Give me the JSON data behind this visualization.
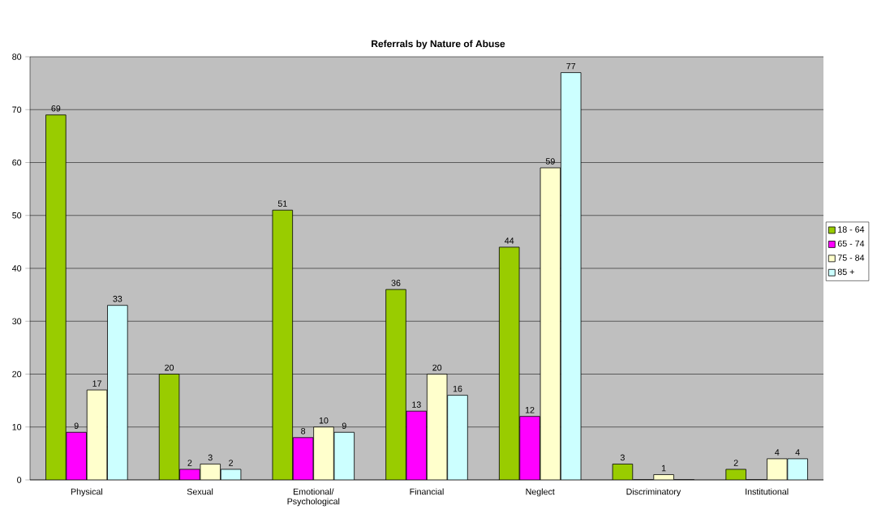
{
  "chart_data": {
    "type": "bar",
    "title": "Referrals by Nature of Abuse",
    "categories": [
      "Physical",
      "Sexual",
      "Emotional/ Psychological",
      "Financial",
      "Neglect",
      "Discriminatory",
      "Institutional"
    ],
    "series": [
      {
        "name": "18 - 64",
        "color": "#99cc00",
        "values": [
          69,
          20,
          51,
          36,
          44,
          3,
          2
        ],
        "value_labels": [
          "69",
          "20",
          "51",
          "36",
          "44",
          "3",
          "2"
        ]
      },
      {
        "name": "65 - 74",
        "color": "#ff00ff",
        "values": [
          9,
          2,
          8,
          13,
          12,
          0,
          0
        ],
        "value_labels": [
          "9",
          "2",
          "8",
          "13",
          "12",
          null,
          null
        ]
      },
      {
        "name": "75 - 84",
        "color": "#ffffcc",
        "values": [
          17,
          3,
          10,
          20,
          59,
          1,
          4
        ],
        "value_labels": [
          "17",
          "3",
          "10",
          "20",
          "59",
          "1",
          "4"
        ]
      },
      {
        "name": "85 +",
        "color": "#ccffff",
        "values": [
          33,
          2,
          9,
          16,
          77,
          0,
          4
        ],
        "value_labels": [
          "33",
          "2",
          "9",
          "16",
          "77",
          null,
          "4"
        ]
      }
    ],
    "ylim": [
      0,
      80
    ],
    "yticks": [
      0,
      10,
      20,
      30,
      40,
      50,
      60,
      70,
      80
    ],
    "grid": "y",
    "legend": "right"
  }
}
